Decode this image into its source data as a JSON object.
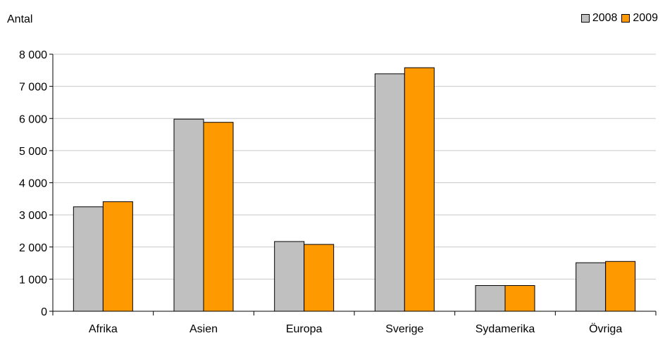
{
  "chart_data": {
    "type": "bar",
    "ylabel": "Antal",
    "categories": [
      "Afrika",
      "Asien",
      "Europa",
      "Sverige",
      "Sydamerika",
      "Övriga"
    ],
    "series": [
      {
        "name": "2008",
        "color": "#c0c0c0",
        "values": [
          3250,
          5980,
          2170,
          7390,
          800,
          1510
        ]
      },
      {
        "name": "2009",
        "color": "#ff9900",
        "values": [
          3410,
          5880,
          2080,
          7580,
          800,
          1550
        ]
      }
    ],
    "ylim": [
      0,
      8000
    ],
    "yticks": [
      0,
      1000,
      2000,
      3000,
      4000,
      5000,
      6000,
      7000,
      8000
    ],
    "ytick_labels": [
      "0",
      "1 000",
      "2 000",
      "3 000",
      "4 000",
      "5 000",
      "6 000",
      "7 000",
      "8 000"
    ],
    "grid": true,
    "legend_position": "top-right"
  }
}
